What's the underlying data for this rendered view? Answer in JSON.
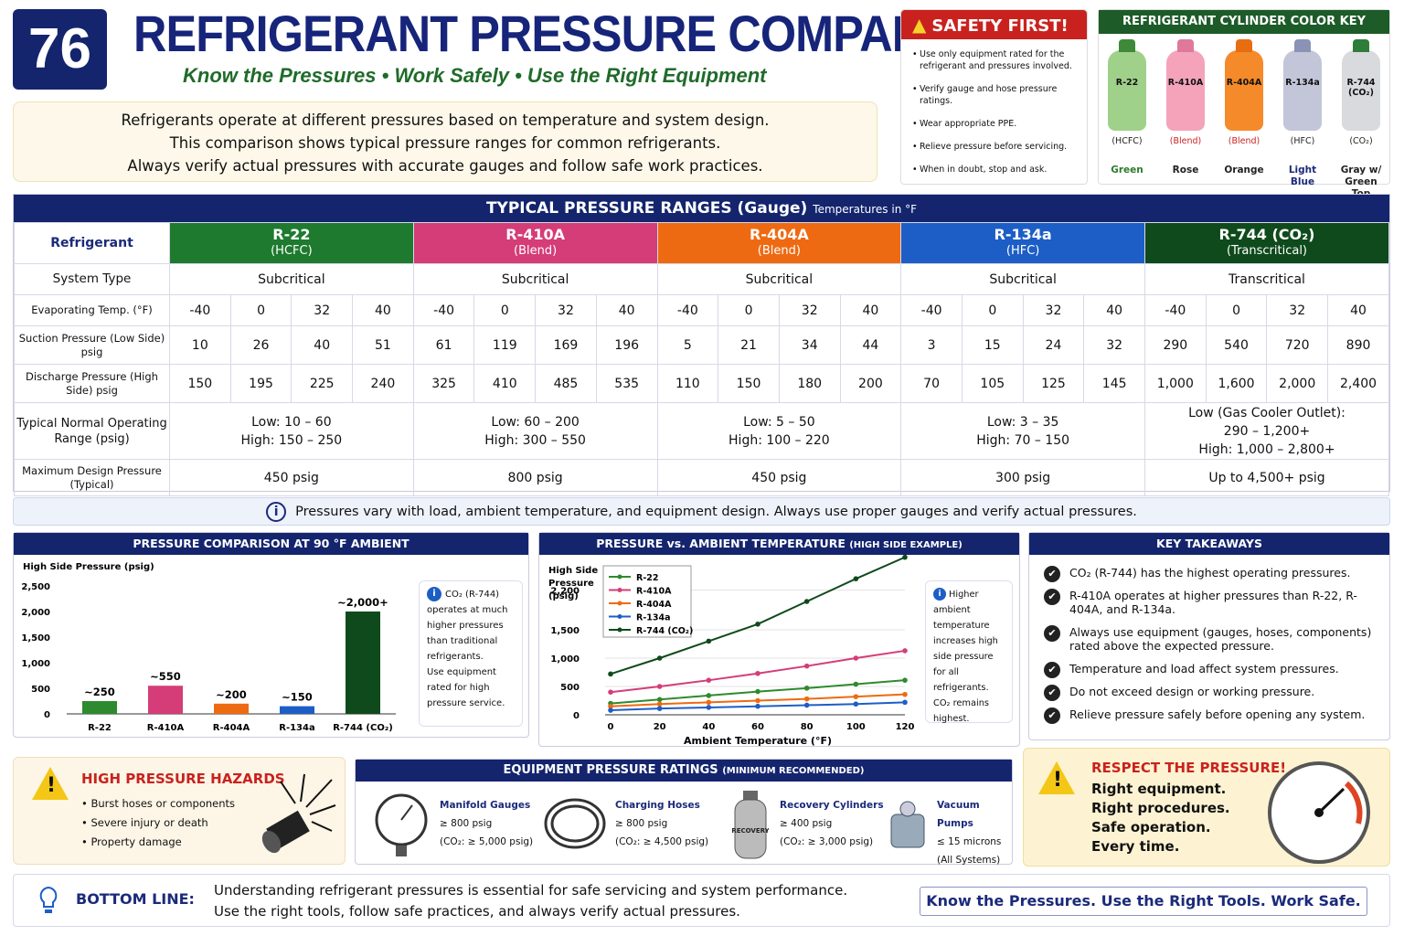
{
  "badge": "76",
  "title": "REFRIGERANT PRESSURE COMPARISON",
  "subtitle": "Know the Pressures  •  Work Safely  •  Use the Right Equipment",
  "intro": [
    "Refrigerants operate at different pressures based on temperature and system design.",
    "This comparison shows typical pressure ranges for common refrigerants.",
    "Always verify actual pressures with accurate gauges and follow safe work practices."
  ],
  "safety": {
    "title": "SAFETY FIRST!",
    "items": [
      "Use only equipment rated for the refrigerant and pressures involved.",
      "Verify gauge and hose pressure ratings.",
      "Wear appropriate PPE.",
      "Relieve pressure before servicing.",
      "When in doubt, stop and ask."
    ]
  },
  "cylinders": {
    "title": "REFRIGERANT CYLINDER COLOR KEY",
    "items": [
      {
        "name": "R-22",
        "type": "(HCFC)",
        "color": "Green",
        "body": "#9fd18a",
        "cap": "#3e8a3a"
      },
      {
        "name": "R-410A",
        "type": "(Blend)",
        "color": "Rose",
        "body": "#f4a3bb",
        "cap": "#e0789a"
      },
      {
        "name": "R-404A",
        "type": "(Blend)",
        "color": "Orange",
        "body": "#f58a2a",
        "cap": "#e86d10"
      },
      {
        "name": "R-134a",
        "type": "(HFC)",
        "color": "Light Blue",
        "body": "#c2c6d8",
        "cap": "#8a93b5"
      },
      {
        "name": "R-744 (CO₂)",
        "type": "(CO₂)",
        "color": "Gray w/ Green Top",
        "body": "#d9dadd",
        "cap": "#2f7d3a"
      }
    ]
  },
  "table": {
    "title": "TYPICAL PRESSURE RANGES (Gauge)",
    "subtitle": "Temperatures in °F",
    "refrigerant_label": "Refrigerant",
    "rows": {
      "system": "System Type",
      "evap": "Evaporating Temp. (°F)",
      "suction": "Suction Pressure (Low Side) psig",
      "discharge": "Discharge Pressure (High Side) psig",
      "normal": "Typical Normal Operating Range (psig)",
      "max": "Maximum Design Pressure (Typical)"
    },
    "temps": [
      "-40",
      "0",
      "32",
      "40"
    ],
    "refrigerants": [
      {
        "name": "R-22",
        "type": "(HCFC)",
        "color": "#1e7a2e",
        "system": "Subcritical",
        "suction": [
          "10",
          "26",
          "40",
          "51"
        ],
        "discharge": [
          "150",
          "195",
          "225",
          "240"
        ],
        "normal": [
          "Low: 10 – 60",
          "High: 150 – 250"
        ],
        "max": "450 psig"
      },
      {
        "name": "R-410A",
        "type": "(Blend)",
        "color": "#d43d78",
        "system": "Subcritical",
        "suction": [
          "61",
          "119",
          "169",
          "196"
        ],
        "discharge": [
          "325",
          "410",
          "485",
          "535"
        ],
        "normal": [
          "Low: 60 – 200",
          "High: 300 – 550"
        ],
        "max": "800 psig"
      },
      {
        "name": "R-404A",
        "type": "(Blend)",
        "color": "#ee6a12",
        "system": "Subcritical",
        "suction": [
          "5",
          "21",
          "34",
          "44"
        ],
        "discharge": [
          "110",
          "150",
          "180",
          "200"
        ],
        "normal": [
          "Low: 5 – 50",
          "High: 100 – 220"
        ],
        "max": "450 psig"
      },
      {
        "name": "R-134a",
        "type": "(HFC)",
        "color": "#1d5ec6",
        "system": "Subcritical",
        "suction": [
          "3",
          "15",
          "24",
          "32"
        ],
        "discharge": [
          "70",
          "105",
          "125",
          "145"
        ],
        "normal": [
          "Low: 3 – 35",
          "High: 70 – 150"
        ],
        "max": "300 psig"
      },
      {
        "name": "R-744 (CO₂)",
        "type": "(Transcritical)",
        "color": "#0f4a1c",
        "system": "Transcritical",
        "suction": [
          "290",
          "540",
          "720",
          "890"
        ],
        "discharge": [
          "1,000",
          "1,600",
          "2,000",
          "2,400"
        ],
        "normal": [
          "Low (Gas Cooler Outlet):",
          "290 – 1,200+",
          "High: 1,000 – 2,800+"
        ],
        "max": "Up to 4,500+ psig"
      }
    ]
  },
  "note": "Pressures vary with load, ambient temperature, and equipment design.   Always use proper gauges and verify actual pressures.",
  "bar_panel": {
    "title": "PRESSURE COMPARISON AT 90 °F AMBIENT",
    "info": [
      "CO₂ (R-744)",
      "operates at much",
      "higher pressures",
      "than traditional",
      "refrigerants.",
      "Use equipment",
      "rated for high",
      "pressure service."
    ]
  },
  "line_panel": {
    "title": "PRESSURE vs. AMBIENT TEMPERATURE",
    "title_small": "(HIGH SIDE EXAMPLE)",
    "info": [
      "Higher ambient",
      "temperature",
      "increases high",
      "side pressure",
      "for all",
      "refrigerants.",
      "CO₂ remains",
      "highest."
    ]
  },
  "chart_data": [
    {
      "type": "bar",
      "ylabel": "High Side Pressure (psig)",
      "ylim": [
        0,
        2500
      ],
      "yticks": [
        "0",
        "500",
        "1,000",
        "1,500",
        "2,000",
        "2,500"
      ],
      "categories": [
        "R-22",
        "R-410A",
        "R-404A",
        "R-134a",
        "R-744 (CO₂)"
      ],
      "values": [
        250,
        550,
        200,
        150,
        2000
      ],
      "labels": [
        "~250",
        "~550",
        "~200",
        "~150",
        "~2,000+"
      ],
      "colors": [
        "#2e8a2e",
        "#d43d78",
        "#ee6a12",
        "#1d5ec6",
        "#0f4a1c"
      ]
    },
    {
      "type": "line",
      "ylabel": "High Side Pressure (psig)",
      "xlabel": "Ambient Temperature (°F)",
      "xlim": [
        0,
        120
      ],
      "ylim": [
        0,
        2500
      ],
      "xticks": [
        "0",
        "20",
        "40",
        "60",
        "80",
        "100",
        "120"
      ],
      "yticks": [
        "0",
        "500",
        "1,000",
        "1,500",
        "2,200"
      ],
      "x": [
        0,
        20,
        40,
        60,
        80,
        100,
        120
      ],
      "series": [
        {
          "name": "R-22",
          "color": "#2e8a2e",
          "values": [
            200,
            270,
            340,
            410,
            470,
            540,
            610
          ]
        },
        {
          "name": "R-410A",
          "color": "#d43d78",
          "values": [
            400,
            500,
            610,
            730,
            860,
            1000,
            1130
          ]
        },
        {
          "name": "R-404A",
          "color": "#ee6a12",
          "values": [
            150,
            190,
            220,
            250,
            280,
            320,
            360
          ]
        },
        {
          "name": "R-134a",
          "color": "#1d5ec6",
          "values": [
            80,
            110,
            130,
            150,
            170,
            190,
            220
          ]
        },
        {
          "name": "R-744 (CO₂)",
          "color": "#0f4a1c",
          "values": [
            720,
            1000,
            1300,
            1600,
            2000,
            2400,
            2780
          ]
        }
      ]
    }
  ],
  "takeaways": {
    "title": "KEY TAKEAWAYS",
    "items": [
      "CO₂ (R-744) has the highest operating pressures.",
      "R-410A operates at higher pressures than R-22, R-404A, and R-134a.",
      "Always use equipment (gauges, hoses, components) rated above the expected pressure.",
      "Temperature and load affect system pressures.",
      "Do not exceed design or working pressure.",
      "Relieve pressure safely before opening any system."
    ]
  },
  "hazards": {
    "title": "HIGH PRESSURE HAZARDS",
    "items": [
      "Burst hoses or components",
      "Severe injury or death",
      "Property damage"
    ]
  },
  "equipment": {
    "title": "EQUIPMENT PRESSURE RATINGS",
    "title_small": "(MINIMUM RECOMMENDED)",
    "items": [
      {
        "name": "Manifold Gauges",
        "rating": "≥ 800 psig",
        "co2": "(CO₂: ≥ 5,000 psig)"
      },
      {
        "name": "Charging Hoses",
        "rating": "≥ 800 psig",
        "co2": "(CO₂: ≥ 4,500 psig)"
      },
      {
        "name": "Recovery Cylinders",
        "rating": "≥ 400 psig",
        "co2": "(CO₂: ≥ 3,000 psig)"
      },
      {
        "name": "Vacuum Pumps",
        "rating": "≤ 15 microns",
        "co2": "(All Systems)"
      }
    ]
  },
  "respect": {
    "title": "RESPECT THE PRESSURE!",
    "lines": [
      "Right equipment.",
      "Right procedures.",
      "Safe operation.",
      "Every time."
    ]
  },
  "bottom": {
    "label": "BOTTOM LINE:",
    "lines": [
      "Understanding refrigerant pressures is essential for safe servicing and system performance.",
      "Use the right tools, follow safe practices, and always verify actual pressures."
    ],
    "slogan": "Know the Pressures.  Use the Right Tools.  Work Safe."
  }
}
